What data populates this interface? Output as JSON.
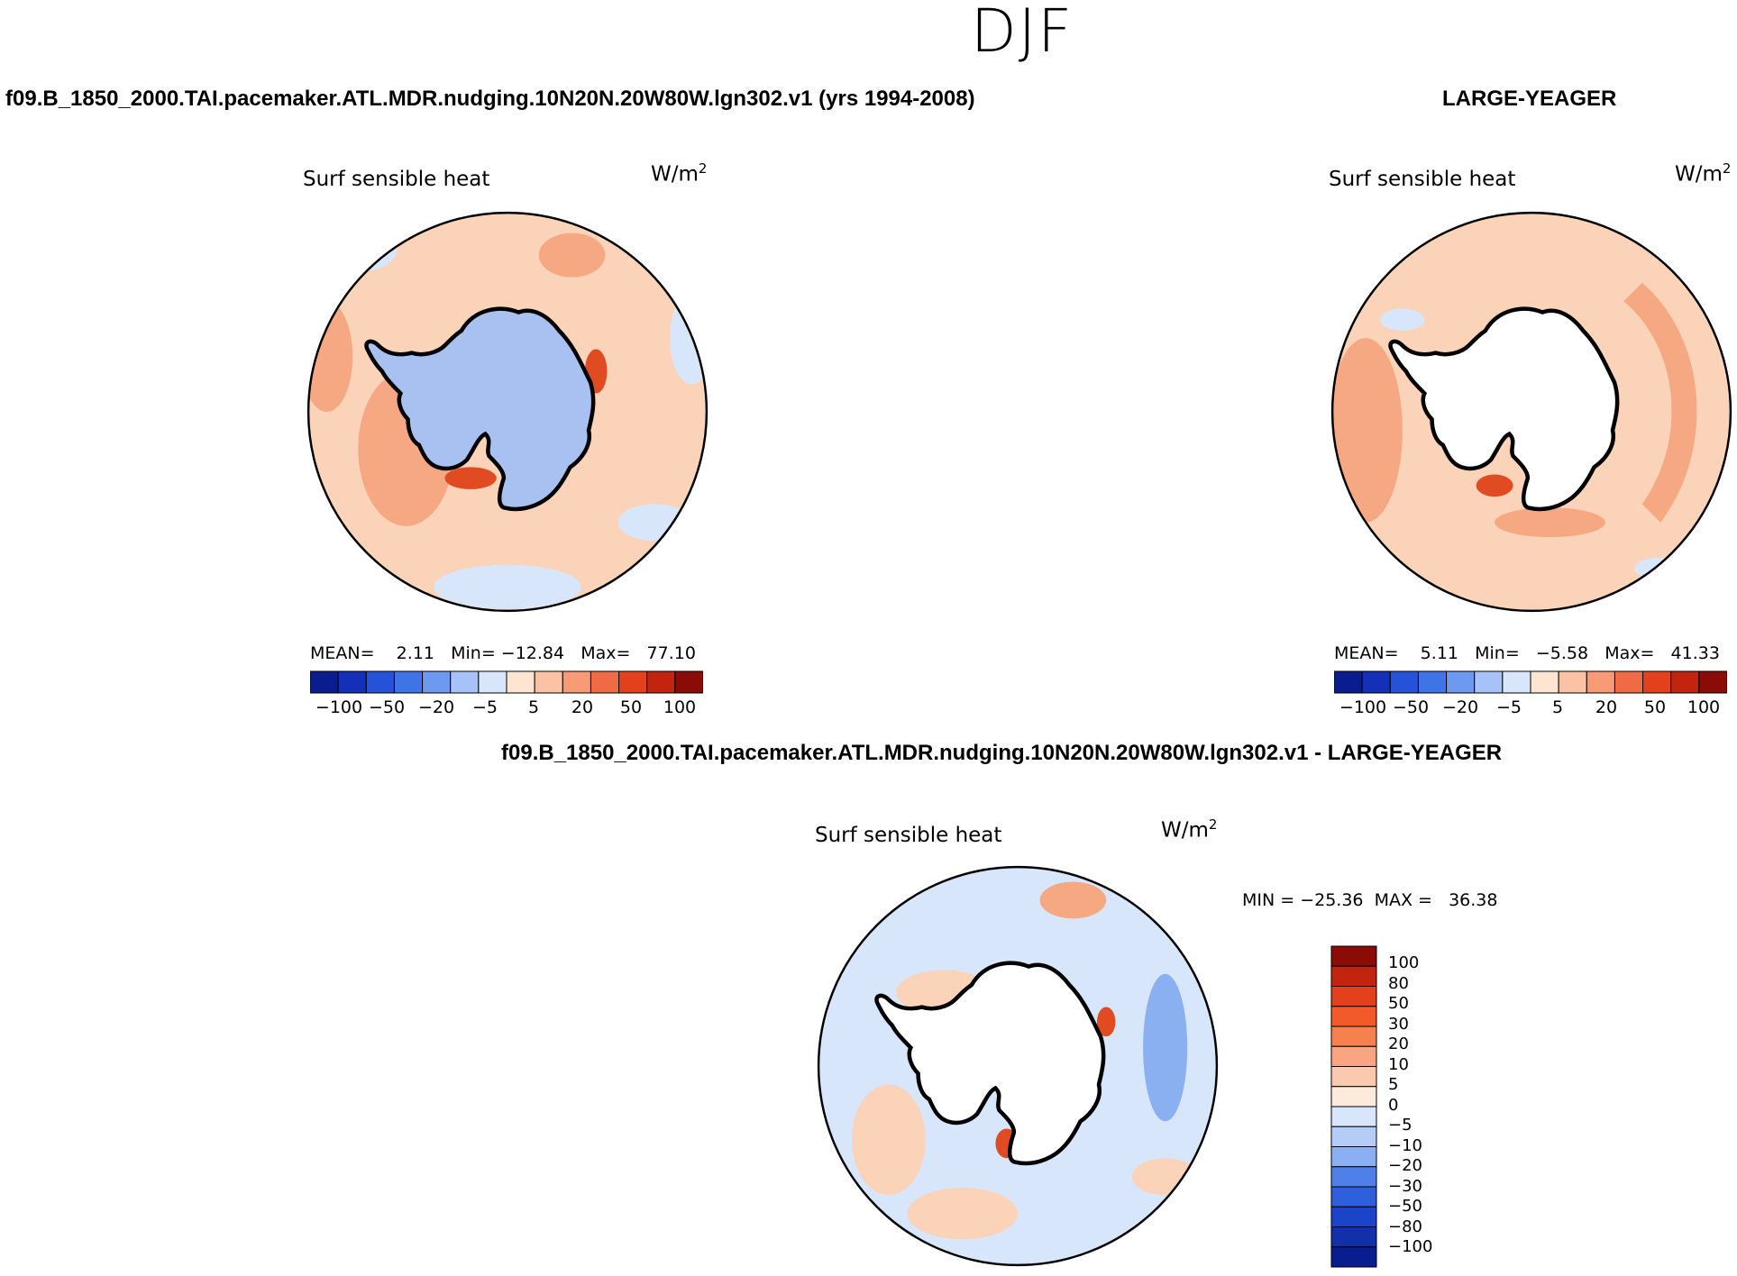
{
  "figure": {
    "season": "DJF",
    "variable": "Surf sensible heat",
    "units_base": "W/m",
    "units_exp": "2"
  },
  "panels": [
    {
      "case_title": "f09.B_1850_2000.TAI.pacemaker.ATL.MDR.nudging.10N20N.20W80W.lgn302.v1 (yrs 1994-2008)",
      "title": "Surf sensible heat",
      "stats": "MEAN=    2.11   Min= −12.84   Max=   77.10",
      "land_filled": true
    },
    {
      "case_title": "LARGE-YEAGER",
      "title": "Surf sensible heat",
      "stats": "MEAN=    5.11   Min=   −5.58   Max=   41.33",
      "land_filled": false
    }
  ],
  "horizontal_colorbar": {
    "colors": [
      "#0a1d8e",
      "#1530b8",
      "#2652d9",
      "#3f74e6",
      "#6d9af0",
      "#a6c2f7",
      "#d7e6fb",
      "#fde5d2",
      "#fbc3a4",
      "#f69b76",
      "#f06b45",
      "#e2411c",
      "#c22410",
      "#8b0c06"
    ],
    "labels": [
      "−100",
      "−50",
      "−20",
      "−5",
      "5",
      "20",
      "50",
      "100"
    ]
  },
  "diff_panel": {
    "title": "f09.B_1850_2000.TAI.pacemaker.ATL.MDR.nudging.10N20N.20W80W.lgn302.v1 - LARGE-YEAGER",
    "subtitle": "Surf sensible heat",
    "min_max": "MIN = −25.36  MAX =   36.38",
    "colorbar": {
      "colors": [
        "#8b0c06",
        "#c22410",
        "#e2411c",
        "#f25a2a",
        "#f6814f",
        "#f9a582",
        "#fbc9ad",
        "#fdeadb",
        "#d7e6fb",
        "#b3cdf7",
        "#8bb0f2",
        "#4f7fe8",
        "#2f5fdd",
        "#1b44c8",
        "#1230aa",
        "#0a1d8e"
      ],
      "labels": [
        "100",
        "80",
        "50",
        "30",
        "20",
        "10",
        "5",
        "0",
        "−5",
        "−10",
        "−20",
        "−30",
        "−50",
        "−80",
        "−100"
      ]
    }
  },
  "colors": {
    "land_fill": "#a9c1f1",
    "ocean_warm": "#fbd3b9",
    "ocean_warmer": "#f6a883",
    "ocean_hot": "#e04b22",
    "ocean_cool": "#d7e6fb",
    "coast": "#000000"
  }
}
